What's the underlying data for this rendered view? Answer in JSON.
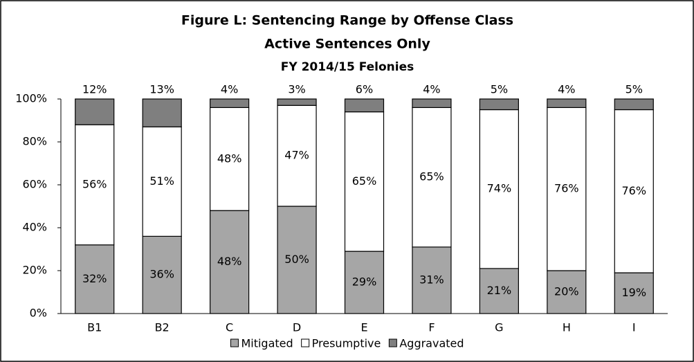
{
  "chart_data": {
    "type": "stacked_bar",
    "title": "Figure L: Sentencing Range by Offense Class",
    "subtitles": [
      "Active Sentences Only",
      "FY 2014/15 Felonies"
    ],
    "categories": [
      "B1",
      "B2",
      "C",
      "D",
      "E",
      "F",
      "G",
      "H",
      "I"
    ],
    "series": [
      {
        "name": "Mitigated",
        "color": "#a6a6a6",
        "values": [
          32,
          36,
          48,
          50,
          29,
          31,
          21,
          20,
          19
        ],
        "value_labels": [
          "32%",
          "36%",
          "48%",
          "50%",
          "29%",
          "31%",
          "21%",
          "20%",
          "19%"
        ]
      },
      {
        "name": "Presumptive",
        "color": "#ffffff",
        "values": [
          56,
          51,
          48,
          47,
          65,
          65,
          74,
          76,
          76
        ],
        "value_labels": [
          "56%",
          "51%",
          "48%",
          "47%",
          "65%",
          "65%",
          "74%",
          "76%",
          "76%"
        ]
      },
      {
        "name": "Aggravated",
        "color": "#7f7f7f",
        "values": [
          12,
          13,
          4,
          3,
          6,
          4,
          5,
          4,
          5
        ],
        "value_labels": [
          "12%",
          "13%",
          "4%",
          "3%",
          "6%",
          "4%",
          "5%",
          "4%",
          "5%"
        ]
      }
    ],
    "ylim": [
      0,
      100
    ],
    "yticks": [
      {
        "value": 0,
        "label": "0%"
      },
      {
        "value": 20,
        "label": "20%"
      },
      {
        "value": 40,
        "label": "40%"
      },
      {
        "value": 60,
        "label": "60%"
      },
      {
        "value": 80,
        "label": "80%"
      },
      {
        "value": 100,
        "label": "100%"
      }
    ],
    "grid": false,
    "legend": "bottom"
  }
}
